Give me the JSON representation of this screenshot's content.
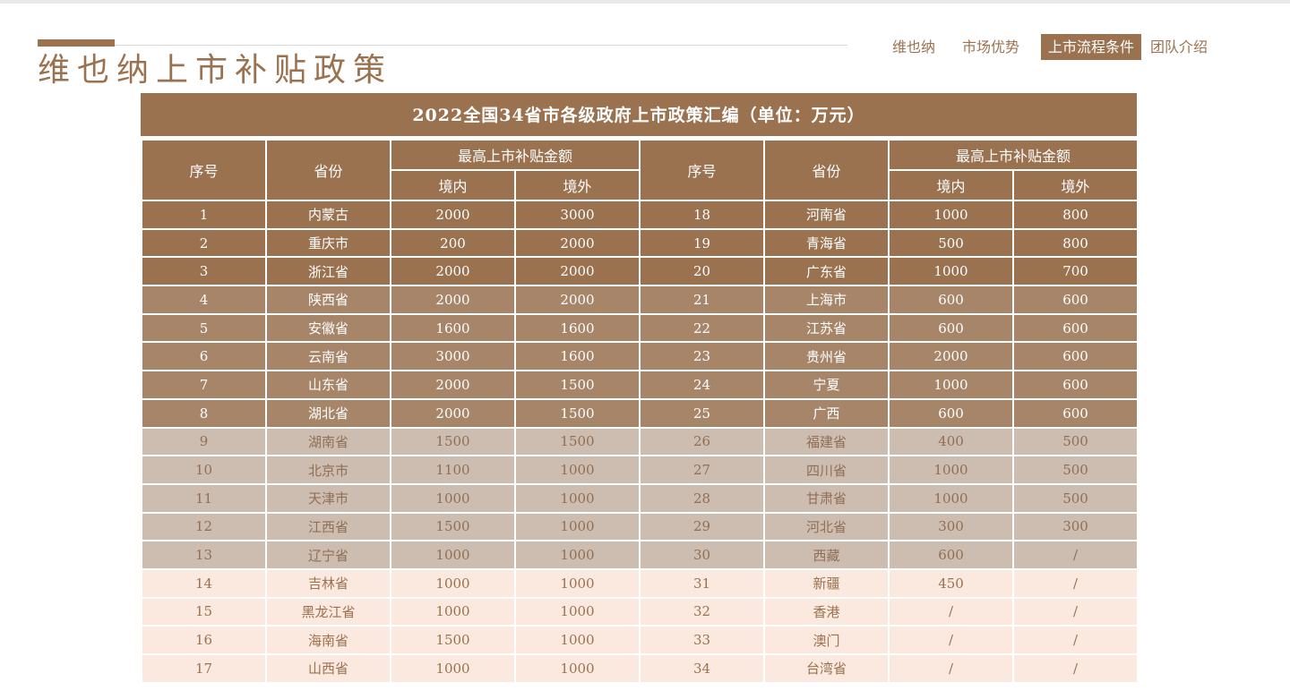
{
  "header": {
    "title": "维也纳上市补贴政策",
    "nav": [
      "维也纳",
      "市场优势",
      "上市流程条件",
      "团队介绍"
    ],
    "active_nav": "上市流程条件"
  },
  "table": {
    "caption": "2022全国34省市各级政府上市政策汇编（单位：万元）",
    "headers": {
      "seq": "序号",
      "province": "省份",
      "max_subsidy": "最高上市补贴金额",
      "domestic": "境内",
      "overseas": "境外"
    },
    "rows": [
      {
        "tone": "t1",
        "l": {
          "no": "1",
          "prov": "内蒙古",
          "dom": "2000",
          "ovs": "3000"
        },
        "r": {
          "no": "18",
          "prov": "河南省",
          "dom": "1000",
          "ovs": "800"
        }
      },
      {
        "tone": "t1",
        "l": {
          "no": "2",
          "prov": "重庆市",
          "dom": "200",
          "ovs": "2000"
        },
        "r": {
          "no": "19",
          "prov": "青海省",
          "dom": "500",
          "ovs": "800"
        }
      },
      {
        "tone": "t1",
        "l": {
          "no": "3",
          "prov": "浙江省",
          "dom": "2000",
          "ovs": "2000"
        },
        "r": {
          "no": "20",
          "prov": "广东省",
          "dom": "1000",
          "ovs": "700"
        }
      },
      {
        "tone": "t2",
        "l": {
          "no": "4",
          "prov": "陕西省",
          "dom": "2000",
          "ovs": "2000"
        },
        "r": {
          "no": "21",
          "prov": "上海市",
          "dom": "600",
          "ovs": "600"
        }
      },
      {
        "tone": "t2",
        "l": {
          "no": "5",
          "prov": "安徽省",
          "dom": "1600",
          "ovs": "1600"
        },
        "r": {
          "no": "22",
          "prov": "江苏省",
          "dom": "600",
          "ovs": "600"
        }
      },
      {
        "tone": "t2",
        "l": {
          "no": "6",
          "prov": "云南省",
          "dom": "3000",
          "ovs": "1600"
        },
        "r": {
          "no": "23",
          "prov": "贵州省",
          "dom": "2000",
          "ovs": "600"
        }
      },
      {
        "tone": "t2",
        "l": {
          "no": "7",
          "prov": "山东省",
          "dom": "2000",
          "ovs": "1500"
        },
        "r": {
          "no": "24",
          "prov": "宁夏",
          "dom": "1000",
          "ovs": "600"
        }
      },
      {
        "tone": "t2",
        "l": {
          "no": "8",
          "prov": "湖北省",
          "dom": "2000",
          "ovs": "1500"
        },
        "r": {
          "no": "25",
          "prov": "广西",
          "dom": "600",
          "ovs": "600"
        }
      },
      {
        "tone": "t3",
        "l": {
          "no": "9",
          "prov": "湖南省",
          "dom": "1500",
          "ovs": "1500"
        },
        "r": {
          "no": "26",
          "prov": "福建省",
          "dom": "400",
          "ovs": "500"
        }
      },
      {
        "tone": "t3",
        "l": {
          "no": "10",
          "prov": "北京市",
          "dom": "1100",
          "ovs": "1000"
        },
        "r": {
          "no": "27",
          "prov": "四川省",
          "dom": "1000",
          "ovs": "500"
        }
      },
      {
        "tone": "t3",
        "l": {
          "no": "11",
          "prov": "天津市",
          "dom": "1000",
          "ovs": "1000"
        },
        "r": {
          "no": "28",
          "prov": "甘肃省",
          "dom": "1000",
          "ovs": "500"
        }
      },
      {
        "tone": "t3",
        "l": {
          "no": "12",
          "prov": "江西省",
          "dom": "1500",
          "ovs": "1000"
        },
        "r": {
          "no": "29",
          "prov": "河北省",
          "dom": "300",
          "ovs": "300"
        }
      },
      {
        "tone": "t3",
        "l": {
          "no": "13",
          "prov": "辽宁省",
          "dom": "1000",
          "ovs": "1000"
        },
        "r": {
          "no": "30",
          "prov": "西藏",
          "dom": "600",
          "ovs": "/"
        }
      },
      {
        "tone": "t4",
        "l": {
          "no": "14",
          "prov": "吉林省",
          "dom": "1000",
          "ovs": "1000"
        },
        "r": {
          "no": "31",
          "prov": "新疆",
          "dom": "450",
          "ovs": "/"
        }
      },
      {
        "tone": "t4",
        "l": {
          "no": "15",
          "prov": "黑龙江省",
          "dom": "1000",
          "ovs": "1000"
        },
        "r": {
          "no": "32",
          "prov": "香港",
          "dom": "/",
          "ovs": "/"
        }
      },
      {
        "tone": "t4",
        "l": {
          "no": "16",
          "prov": "海南省",
          "dom": "1500",
          "ovs": "1000"
        },
        "r": {
          "no": "33",
          "prov": "澳门",
          "dom": "/",
          "ovs": "/"
        }
      },
      {
        "tone": "t4",
        "l": {
          "no": "17",
          "prov": "山西省",
          "dom": "1000",
          "ovs": "1000"
        },
        "r": {
          "no": "34",
          "prov": "台湾省",
          "dom": "/",
          "ovs": "/"
        }
      }
    ]
  },
  "colors": {
    "brand": "#9a7250",
    "row_tone_1": "#9a7250",
    "row_tone_2": "#a78569",
    "row_tone_3": "#cdbdb0",
    "row_tone_4": "#fbe8de"
  }
}
